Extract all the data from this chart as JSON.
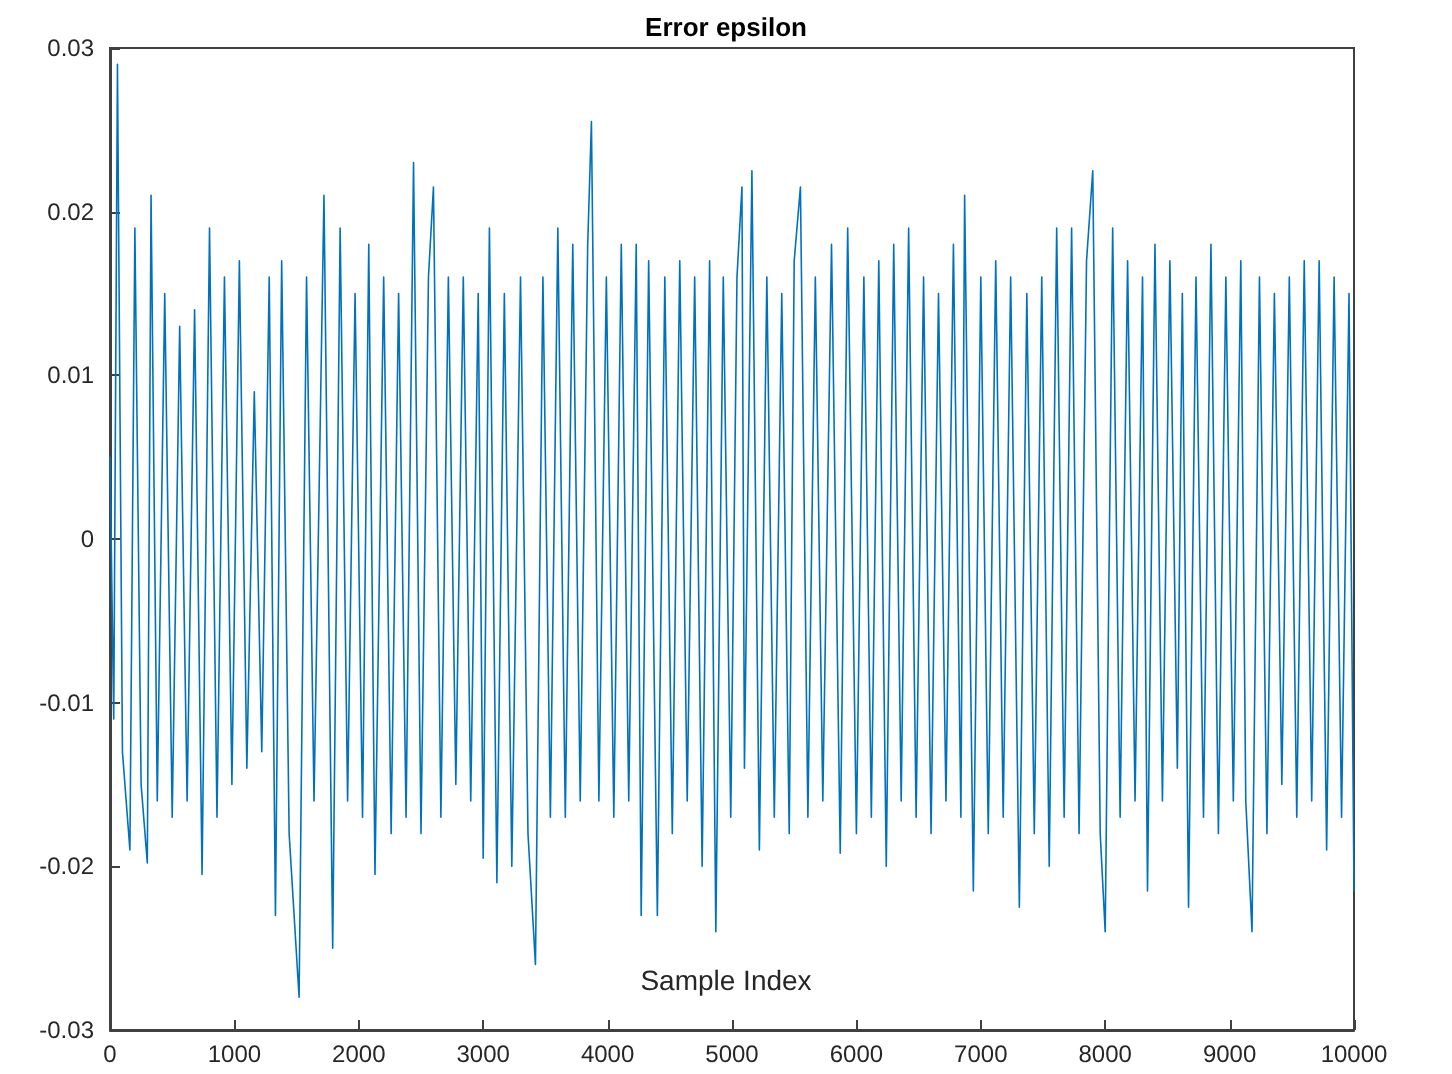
{
  "chart_data": {
    "type": "line",
    "title": "Error epsilon",
    "xlabel": "Sample Index",
    "x": [
      0,
      30,
      60,
      100,
      160,
      200,
      250,
      300,
      330,
      380,
      440,
      500,
      560,
      620,
      680,
      740,
      800,
      860,
      920,
      980,
      1040,
      1100,
      1160,
      1220,
      1280,
      1330,
      1380,
      1440,
      1520,
      1580,
      1640,
      1720,
      1790,
      1850,
      1910,
      1970,
      2030,
      2080,
      2130,
      2200,
      2260,
      2320,
      2380,
      2440,
      2500,
      2560,
      2600,
      2660,
      2720,
      2780,
      2840,
      2900,
      2960,
      3000,
      3050,
      3110,
      3170,
      3230,
      3300,
      3360,
      3420,
      3480,
      3540,
      3600,
      3660,
      3720,
      3780,
      3840,
      3870,
      3930,
      3990,
      4050,
      4110,
      4170,
      4230,
      4270,
      4330,
      4400,
      4460,
      4520,
      4580,
      4640,
      4700,
      4760,
      4820,
      4870,
      4930,
      4990,
      5040,
      5080,
      5100,
      5160,
      5220,
      5280,
      5340,
      5400,
      5460,
      5500,
      5550,
      5610,
      5670,
      5730,
      5800,
      5870,
      5930,
      6000,
      6060,
      6120,
      6180,
      6240,
      6300,
      6360,
      6420,
      6480,
      6540,
      6600,
      6660,
      6720,
      6780,
      6840,
      6870,
      6940,
      7000,
      7060,
      7120,
      7180,
      7240,
      7310,
      7370,
      7430,
      7490,
      7550,
      7610,
      7670,
      7730,
      7790,
      7850,
      7900,
      7960,
      8000,
      8060,
      8120,
      8180,
      8240,
      8300,
      8340,
      8400,
      8460,
      8520,
      8580,
      8620,
      8670,
      8730,
      8790,
      8850,
      8910,
      8970,
      9030,
      9090,
      9130,
      9180,
      9240,
      9300,
      9360,
      9420,
      9480,
      9540,
      9600,
      9660,
      9720,
      9780,
      9840,
      9900,
      9960,
      10000
    ],
    "series": [
      {
        "color": "#0072bd",
        "values": [
          0.005,
          -0.011,
          0.029,
          -0.013,
          -0.019,
          0.019,
          -0.015,
          -0.0198,
          0.021,
          -0.016,
          0.015,
          -0.017,
          0.013,
          -0.016,
          0.014,
          -0.0205,
          0.019,
          -0.017,
          0.016,
          -0.015,
          0.017,
          -0.014,
          0.009,
          -0.013,
          0.016,
          -0.023,
          0.017,
          -0.018,
          -0.028,
          0.016,
          -0.016,
          0.021,
          -0.025,
          0.019,
          -0.016,
          0.015,
          -0.017,
          0.018,
          -0.0205,
          0.016,
          -0.018,
          0.015,
          -0.017,
          0.023,
          -0.018,
          0.016,
          0.0215,
          -0.017,
          0.016,
          -0.015,
          0.016,
          -0.016,
          0.015,
          -0.0195,
          0.019,
          -0.021,
          0.015,
          -0.02,
          0.016,
          -0.018,
          -0.026,
          0.016,
          -0.017,
          0.019,
          -0.017,
          0.018,
          -0.016,
          0.018,
          0.0255,
          -0.016,
          0.016,
          -0.017,
          0.018,
          -0.016,
          0.018,
          -0.023,
          0.017,
          -0.023,
          0.016,
          -0.018,
          0.017,
          -0.016,
          0.016,
          -0.02,
          0.017,
          -0.024,
          0.016,
          -0.017,
          0.016,
          0.0215,
          -0.014,
          0.0225,
          -0.019,
          0.016,
          -0.017,
          0.015,
          -0.018,
          0.017,
          0.0215,
          -0.017,
          0.016,
          -0.016,
          0.018,
          -0.0192,
          0.019,
          -0.018,
          0.016,
          -0.017,
          0.017,
          -0.02,
          0.018,
          -0.016,
          0.019,
          -0.017,
          0.016,
          -0.018,
          0.015,
          -0.016,
          0.018,
          -0.017,
          0.021,
          -0.0215,
          0.016,
          -0.018,
          0.017,
          -0.017,
          0.016,
          -0.0225,
          0.015,
          -0.018,
          0.016,
          -0.02,
          0.019,
          -0.017,
          0.019,
          -0.018,
          0.017,
          0.0225,
          -0.018,
          -0.024,
          0.019,
          -0.017,
          0.017,
          -0.016,
          0.016,
          -0.0215,
          0.018,
          -0.016,
          0.017,
          -0.014,
          0.015,
          -0.0225,
          0.016,
          -0.017,
          0.018,
          -0.018,
          0.016,
          -0.016,
          0.017,
          -0.016,
          -0.024,
          0.016,
          -0.018,
          0.015,
          -0.015,
          0.016,
          -0.017,
          0.017,
          -0.016,
          0.017,
          -0.019,
          0.016,
          -0.017,
          0.015,
          -0.0215
        ]
      }
    ],
    "xlim": [
      0,
      10000
    ],
    "xticks": [
      0,
      1000,
      2000,
      3000,
      4000,
      5000,
      6000,
      7000,
      8000,
      9000,
      10000
    ],
    "ylim": [
      -0.03,
      0.03
    ],
    "yticks": [
      -0.03,
      -0.02,
      -0.01,
      0,
      0.01,
      0.02,
      0.03
    ],
    "grid": false,
    "marker": "none",
    "line_style": "solid"
  }
}
